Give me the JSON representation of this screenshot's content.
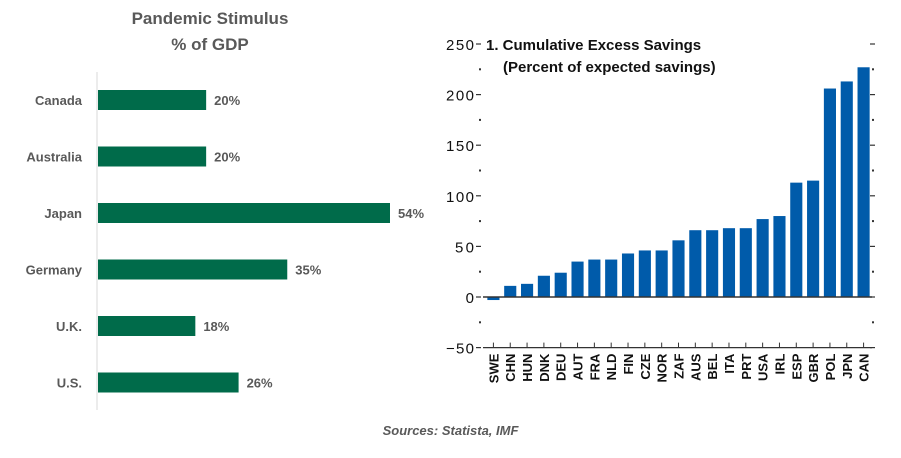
{
  "chart_data": [
    {
      "type": "bar",
      "orientation": "horizontal",
      "title": "Pandemic Stimulus",
      "subtitle": "% of GDP",
      "categories": [
        "Canada",
        "Australia",
        "Japan",
        "Germany",
        "U.K.",
        "U.S."
      ],
      "values": [
        20,
        20,
        54,
        35,
        18,
        26
      ],
      "data_labels": [
        "20%",
        "20%",
        "54%",
        "35%",
        "18%",
        "26%"
      ],
      "xlabel": "",
      "ylabel": "",
      "xlim": [
        0,
        60
      ],
      "grid": false,
      "bar_color": "#006B4A"
    },
    {
      "type": "bar",
      "orientation": "vertical",
      "title": "1. Cumulative Excess Savings",
      "subtitle": "(Percent of expected savings)",
      "categories": [
        "SWE",
        "CHN",
        "HUN",
        "DNK",
        "DEU",
        "AUT",
        "FRA",
        "NLD",
        "FIN",
        "CZE",
        "NOR",
        "ZAF",
        "AUS",
        "BEL",
        "ITA",
        "PRT",
        "USA",
        "IRL",
        "ESP",
        "GBR",
        "POL",
        "JPN",
        "CAN"
      ],
      "values": [
        -3,
        11,
        13,
        21,
        24,
        35,
        37,
        37,
        43,
        46,
        46,
        56,
        66,
        66,
        68,
        68,
        77,
        80,
        113,
        115,
        206,
        213,
        227
      ],
      "yticks": [
        -50,
        0,
        50,
        100,
        150,
        200,
        250
      ],
      "ytick_labels": [
        "−50",
        "0",
        "50",
        "100",
        "150",
        "200",
        "250"
      ],
      "ylim": [
        -50,
        250
      ],
      "xlabel": "",
      "ylabel": "",
      "grid": false,
      "bar_color": "#005BAA"
    }
  ],
  "footer": {
    "source": "Sources: Statista, IMF"
  }
}
